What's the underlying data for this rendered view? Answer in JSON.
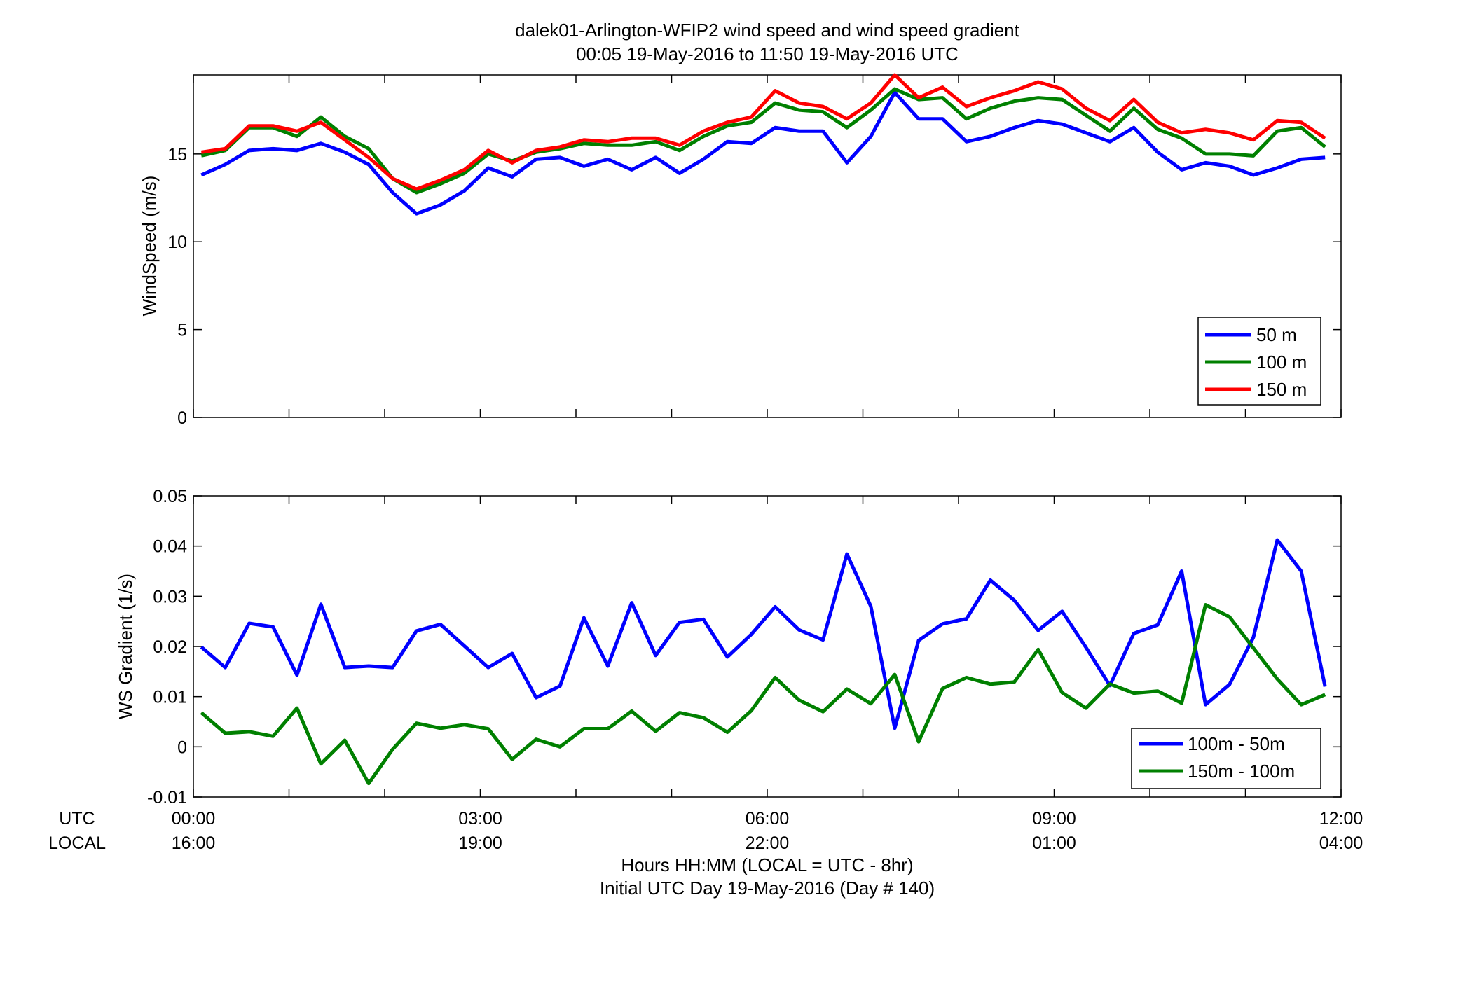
{
  "chart_data": [
    {
      "type": "line",
      "title": "dalek01-Arlington-WFIP2  wind speed and wind speed gradient",
      "subtitle": "00:05 19-May-2016 to 11:50 19-May-2016  UTC",
      "ylabel": "WindSpeed (m/s)",
      "ylim": [
        0,
        19.5
      ],
      "yticks": [
        "0",
        "5",
        "10",
        "15"
      ],
      "xlim": [
        0,
        12
      ],
      "legend_position": "bottom-right",
      "grid": false,
      "x": [
        0.083,
        0.333,
        0.583,
        0.833,
        1.083,
        1.333,
        1.583,
        1.833,
        2.083,
        2.333,
        2.583,
        2.833,
        3.083,
        3.333,
        3.583,
        3.833,
        4.083,
        4.333,
        4.583,
        4.833,
        5.083,
        5.333,
        5.583,
        5.833,
        6.083,
        6.333,
        6.583,
        6.833,
        7.083,
        7.333,
        7.583,
        7.833,
        8.083,
        8.333,
        8.583,
        8.833,
        9.083,
        9.333,
        9.583,
        9.833,
        10.083,
        10.333,
        10.583,
        10.833,
        11.083,
        11.333,
        11.583,
        11.833
      ],
      "series": [
        {
          "name": "50 m",
          "color": "#0000ff",
          "values": [
            13.8,
            14.4,
            15.2,
            15.3,
            15.2,
            15.6,
            15.1,
            14.4,
            12.8,
            11.6,
            12.1,
            12.9,
            14.2,
            13.7,
            14.7,
            14.8,
            14.3,
            14.7,
            14.1,
            14.8,
            13.9,
            14.7,
            15.7,
            15.6,
            16.5,
            16.3,
            16.3,
            14.5,
            16.0,
            18.5,
            17.0,
            17.0,
            15.7,
            16.0,
            16.5,
            16.9,
            16.7,
            16.2,
            15.7,
            16.5,
            15.1,
            14.1,
            14.5,
            14.3,
            13.8,
            14.2,
            14.7,
            14.8
          ]
        },
        {
          "name": "100 m",
          "color": "#008000",
          "values": [
            14.9,
            15.2,
            16.5,
            16.5,
            16.0,
            17.1,
            16.0,
            15.3,
            13.6,
            12.8,
            13.3,
            13.9,
            15.0,
            14.6,
            15.1,
            15.3,
            15.6,
            15.5,
            15.5,
            15.7,
            15.2,
            16.0,
            16.6,
            16.8,
            17.9,
            17.5,
            17.4,
            16.5,
            17.5,
            18.7,
            18.1,
            18.2,
            17.0,
            17.6,
            18.0,
            18.2,
            18.1,
            17.2,
            16.3,
            17.6,
            16.4,
            15.9,
            15.0,
            15.0,
            14.9,
            16.3,
            16.5,
            15.4
          ]
        },
        {
          "name": "150 m",
          "color": "#ff0000",
          "values": [
            15.1,
            15.3,
            16.6,
            16.6,
            16.3,
            16.8,
            15.8,
            14.8,
            13.6,
            13.0,
            13.5,
            14.1,
            15.2,
            14.5,
            15.2,
            15.4,
            15.8,
            15.7,
            15.9,
            15.9,
            15.5,
            16.3,
            16.8,
            17.1,
            18.6,
            17.9,
            17.7,
            17.0,
            17.9,
            19.5,
            18.2,
            18.8,
            17.7,
            18.2,
            18.6,
            19.1,
            18.7,
            17.6,
            16.9,
            18.1,
            16.8,
            16.2,
            16.4,
            16.2,
            15.8,
            16.9,
            16.8,
            15.9
          ]
        }
      ]
    },
    {
      "type": "line",
      "ylabel": "WS Gradient (1/s)",
      "xlabel": "Hours HH:MM  (LOCAL = UTC - 8hr)",
      "xlabel2": "Initial UTC Day 19-May-2016 (Day # 140)",
      "ylim": [
        -0.01,
        0.05
      ],
      "yticks": [
        "-0.01",
        "0",
        "0.01",
        "0.02",
        "0.03",
        "0.04",
        "0.05"
      ],
      "xlim": [
        0,
        12
      ],
      "xtick_row_labels": [
        "UTC",
        "LOCAL"
      ],
      "xticks_utc": [
        "00:00",
        "03:00",
        "06:00",
        "09:00",
        "12:00"
      ],
      "xticks_local": [
        "16:00",
        "19:00",
        "22:00",
        "01:00",
        "04:00"
      ],
      "legend_position": "bottom-right",
      "grid": false,
      "x": [
        0.083,
        0.333,
        0.583,
        0.833,
        1.083,
        1.333,
        1.583,
        1.833,
        2.083,
        2.333,
        2.583,
        2.833,
        3.083,
        3.333,
        3.583,
        3.833,
        4.083,
        4.333,
        4.583,
        4.833,
        5.083,
        5.333,
        5.583,
        5.833,
        6.083,
        6.333,
        6.583,
        6.833,
        7.083,
        7.333,
        7.583,
        7.833,
        8.083,
        8.333,
        8.583,
        8.833,
        9.083,
        9.333,
        9.583,
        9.833,
        10.083,
        10.333,
        10.583,
        10.833,
        11.083,
        11.333,
        11.583,
        11.833
      ],
      "series": [
        {
          "name": "100m - 50m",
          "color": "#0000ff",
          "values": [
            0.0199,
            0.0158,
            0.0246,
            0.0239,
            0.0143,
            0.0284,
            0.0158,
            0.0161,
            0.0158,
            0.0231,
            0.0244,
            0.0201,
            0.0158,
            0.0186,
            0.0098,
            0.0121,
            0.0257,
            0.0161,
            0.0287,
            0.0182,
            0.0248,
            0.0254,
            0.0179,
            0.0224,
            0.0279,
            0.0233,
            0.0213,
            0.0384,
            0.028,
            0.0037,
            0.0212,
            0.0245,
            0.0255,
            0.0332,
            0.0292,
            0.0232,
            0.027,
            0.0198,
            0.0122,
            0.0226,
            0.0243,
            0.035,
            0.0084,
            0.0124,
            0.0218,
            0.0412,
            0.035,
            0.012
          ]
        },
        {
          "name": "150m - 100m",
          "color": "#008000",
          "values": [
            0.0068,
            0.0027,
            0.003,
            0.0021,
            0.0077,
            -0.0034,
            0.0013,
            -0.0073,
            -0.0005,
            0.0047,
            0.0037,
            0.0044,
            0.0036,
            -0.0025,
            0.0015,
            0.0,
            0.0036,
            0.0036,
            0.0071,
            0.0031,
            0.0068,
            0.0058,
            0.0029,
            0.0072,
            0.0138,
            0.0093,
            0.007,
            0.0115,
            0.0086,
            0.0144,
            0.001,
            0.0116,
            0.0138,
            0.0125,
            0.0129,
            0.0194,
            0.0108,
            0.0077,
            0.0125,
            0.0107,
            0.0111,
            0.0087,
            0.0283,
            0.0259,
            0.0197,
            0.0135,
            0.0084,
            0.0104
          ]
        }
      ]
    }
  ]
}
